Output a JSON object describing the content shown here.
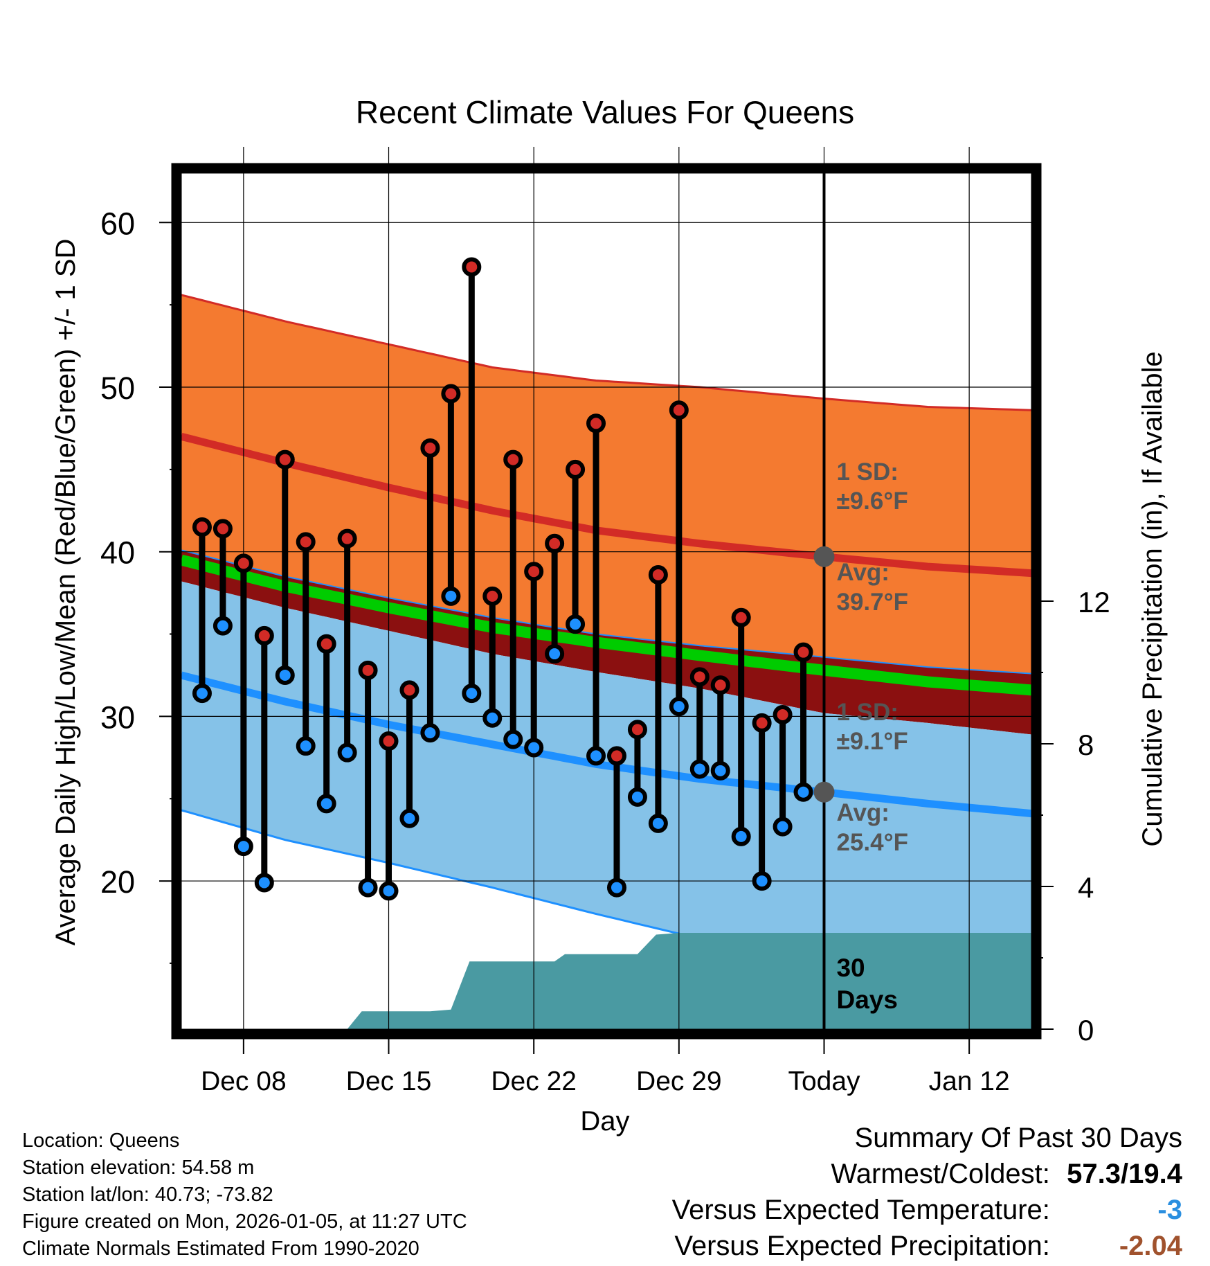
{
  "chart_data": {
    "type": "line",
    "title": "Recent Climate Values For Queens",
    "xlabel": "Day",
    "ylabel": "Average Daily High/Low/Mean (Red/Blue/Green) +/- 1 SD",
    "y2label": "Cumulative Precipitation (in), If Available",
    "x_tick_labels": [
      "Dec 08",
      "Dec 15",
      "Dec 22",
      "Dec 29",
      "Today",
      "Jan 12"
    ],
    "x_tick_days": [
      8,
      15,
      22,
      29,
      36,
      43
    ],
    "xlim": [
      5,
      46
    ],
    "ylim": [
      11,
      63
    ],
    "y_ticks": [
      20,
      30,
      40,
      50,
      60
    ],
    "y2lim": [
      0,
      24
    ],
    "y2_ticks": [
      0,
      4,
      8,
      12
    ],
    "normals": {
      "days": [
        5,
        10,
        15,
        20,
        25,
        30,
        36,
        41,
        46
      ],
      "high_avg": [
        47.0,
        45.4,
        43.9,
        42.5,
        41.3,
        40.5,
        39.7,
        39.1,
        38.7
      ],
      "high_plus_sd": [
        55.6,
        54.0,
        52.6,
        51.2,
        50.4,
        50.0,
        49.3,
        48.8,
        48.6
      ],
      "high_minus_sd": [
        40.1,
        38.5,
        37.2,
        36.0,
        35.0,
        34.3,
        33.6,
        33.0,
        32.6
      ],
      "mean_avg": [
        39.5,
        37.9,
        36.6,
        35.4,
        34.5,
        33.7,
        32.8,
        32.1,
        31.6
      ],
      "low_plus_sd": [
        38.2,
        36.6,
        35.2,
        33.8,
        32.7,
        31.7,
        30.2,
        29.6,
        28.9
      ],
      "low_avg": [
        32.5,
        30.9,
        29.5,
        28.3,
        27.1,
        26.2,
        25.4,
        24.7,
        24.1
      ],
      "low_minus_sd": [
        24.3,
        22.5,
        21.1,
        19.6,
        18.0,
        16.5,
        15.5,
        13.0,
        11.0
      ]
    },
    "observed": {
      "days": [
        6,
        7,
        8,
        9,
        10,
        11,
        12,
        13,
        14,
        15,
        16,
        17,
        18,
        19,
        20,
        21,
        22,
        23,
        24,
        25,
        26,
        27,
        28,
        29,
        30,
        31,
        32,
        33,
        34,
        35
      ],
      "high": [
        41.5,
        41.4,
        39.3,
        34.9,
        45.6,
        40.6,
        34.4,
        40.8,
        32.8,
        28.5,
        31.6,
        46.3,
        49.6,
        57.3,
        37.3,
        45.6,
        38.8,
        40.5,
        45.0,
        47.8,
        27.6,
        29.2,
        38.6,
        48.6,
        32.4,
        31.9,
        36.0,
        29.6,
        30.1,
        33.9
      ],
      "low": [
        31.4,
        35.5,
        22.1,
        19.9,
        32.5,
        28.2,
        24.7,
        27.8,
        19.6,
        19.4,
        23.8,
        29.0,
        37.3,
        31.4,
        29.9,
        28.6,
        28.1,
        33.8,
        35.6,
        27.6,
        19.6,
        25.1,
        23.5,
        30.6,
        26.8,
        26.7,
        22.7,
        20.0,
        23.3,
        25.4
      ]
    },
    "precip_cumulative": {
      "days": [
        13,
        13.7,
        15,
        16,
        17,
        18,
        18.9,
        20,
        21,
        22,
        23,
        23.5,
        24,
        25,
        26,
        27,
        27.9,
        29,
        36,
        46
      ],
      "values": [
        0,
        0.5,
        0.5,
        0.5,
        0.5,
        0.55,
        1.9,
        1.9,
        1.9,
        1.9,
        1.9,
        2.1,
        2.1,
        2.1,
        2.1,
        2.1,
        2.65,
        2.7,
        2.7,
        2.7
      ]
    },
    "annotations": {
      "high_sd": "1 SD:",
      "high_sd_value": "±9.6°F",
      "high_avg": "Avg:",
      "high_avg_value": "39.7°F",
      "low_sd": "1 SD:",
      "low_sd_value": "±9.1°F",
      "low_avg": "Avg:",
      "low_avg_value": "25.4°F",
      "window_label_1": "30",
      "window_label_2": "Days"
    },
    "colors": {
      "high_band": "#f47a30",
      "high_line": "#d22b26",
      "mean_band": "#8b1010",
      "mean_line": "#00cc00",
      "low_band": "#85c2e8",
      "low_line": "#1e90ff",
      "precip": "#4a9aa2",
      "high_dot": "#d22b26",
      "low_dot": "#1e90ff",
      "annotation": "#555555"
    }
  },
  "footer": {
    "location": "Location: Queens",
    "elevation": "Station elevation: 54.58 m",
    "latlon": "Station lat/lon: 40.73; -73.82",
    "created": "Figure created on Mon, 2026-01-05, at 11:27 UTC",
    "normals": "Climate Normals Estimated From 1990-2020"
  },
  "summary": {
    "title": "Summary Of Past 30 Days",
    "warm_cold_label": "Warmest/Coldest:",
    "warm_cold_value": "57.3/19.4",
    "temp_label": "Versus Expected Temperature:",
    "temp_value": "-3",
    "temp_color": "#2a8fe0",
    "precip_label": "Versus Expected Precipitation:",
    "precip_value": "-2.04",
    "precip_color": "#a0522d"
  }
}
